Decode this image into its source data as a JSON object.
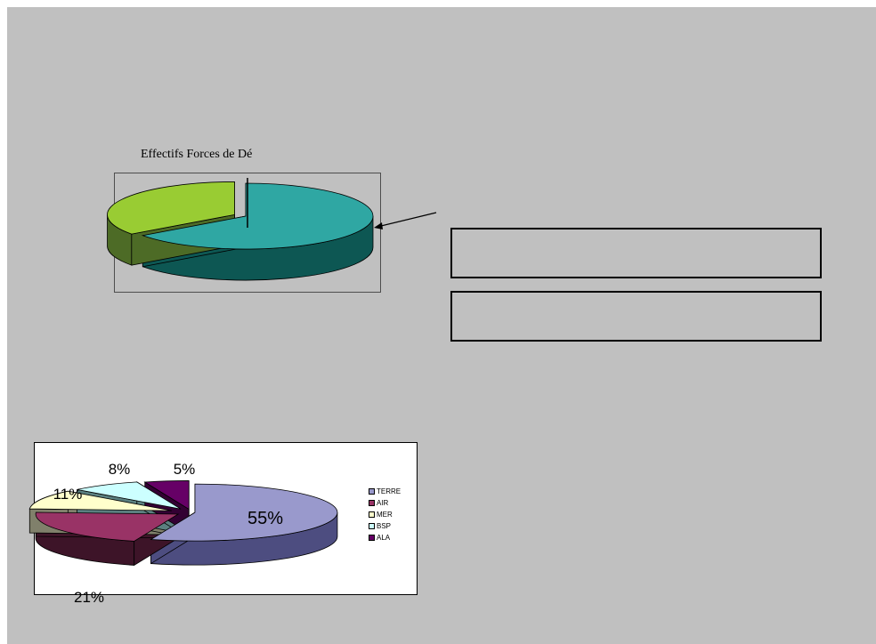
{
  "chart_data": [
    {
      "type": "pie",
      "title": "Effectifs Forces de Dé",
      "values": [
        65,
        35
      ],
      "colors": [
        "#2fa7a3",
        "#99cc33"
      ],
      "side_colors": [
        "#0d5753",
        "#4d6b26"
      ],
      "legend": "none"
    },
    {
      "type": "pie",
      "categories": [
        "TERRE",
        "AIR",
        "MER",
        "BSP",
        "ALA"
      ],
      "values": [
        55,
        21,
        11,
        8,
        5
      ],
      "data_labels": [
        "55%",
        "21%",
        "11%",
        "8%",
        "5%"
      ],
      "colors": [
        "#9999cc",
        "#993366",
        "#ffffcc",
        "#ccffff",
        "#660066"
      ],
      "side_colors": [
        "#4d4d80",
        "#3d1428",
        "#80806b",
        "#5b8080",
        "#330033"
      ],
      "legend": "right"
    }
  ]
}
